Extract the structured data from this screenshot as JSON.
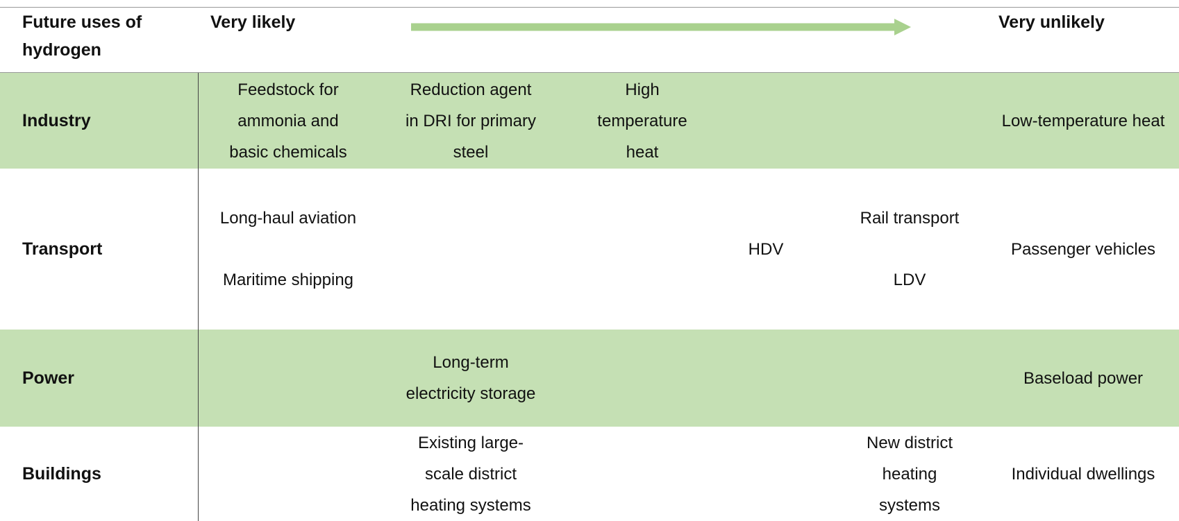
{
  "header": {
    "label": "Future uses of hydrogen",
    "left": "Very likely",
    "right": "Very unlikely"
  },
  "table": {
    "rows": [
      {
        "label": "Industry",
        "cells": [
          [
            "Feedstock for ammonia and basic chemicals"
          ],
          [
            "Reduction agent in DRI for primary steel"
          ],
          [
            "High temperature heat"
          ],
          [],
          [],
          [
            "Low-temperature heat"
          ]
        ]
      },
      {
        "label": "Transport",
        "cells": [
          [
            "Long-haul aviation",
            "Maritime shipping"
          ],
          [],
          [],
          [
            "HDV"
          ],
          [
            "Rail transport",
            "LDV"
          ],
          [
            "Passenger vehicles"
          ]
        ]
      },
      {
        "label": "Power",
        "cells": [
          [],
          [
            "Long-term electricity storage"
          ],
          [],
          [],
          [],
          [
            "Baseload power"
          ]
        ]
      },
      {
        "label": "Buildings",
        "cells": [
          [],
          [
            "Existing large-scale district heating systems"
          ],
          [],
          [],
          [
            "New district heating systems"
          ],
          [
            "Individual dwellings"
          ]
        ]
      }
    ]
  }
}
